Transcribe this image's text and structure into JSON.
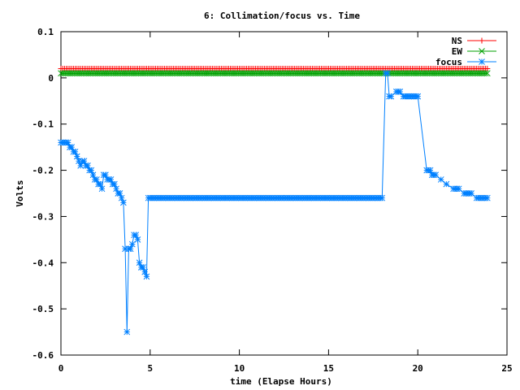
{
  "chart_data": {
    "type": "line",
    "title": "6: Collimation/focus vs. Time",
    "xlabel": "time (Elapse Hours)",
    "ylabel": "Volts",
    "xlim": [
      0,
      25
    ],
    "ylim": [
      -0.6,
      0.1
    ],
    "xticks": [
      0,
      5,
      10,
      15,
      20,
      25
    ],
    "yticks": [
      0.1,
      0,
      -0.1,
      -0.2,
      -0.3,
      -0.4,
      -0.5,
      -0.6
    ],
    "xtick_labels": [
      "0",
      "5",
      "10",
      "15",
      "20",
      "25"
    ],
    "ytick_labels": [
      "0.1",
      "0",
      "-0.1",
      "-0.2",
      "-0.3",
      "-0.4",
      "-0.5",
      "-0.6"
    ],
    "grid": false,
    "legend_position": "top-right",
    "series": [
      {
        "name": "NS",
        "color": "#ff0000",
        "marker": "plus",
        "x": [
          0.0,
          23.9
        ],
        "y": [
          0.02,
          0.02
        ],
        "dense_markers": true
      },
      {
        "name": "EW",
        "color": "#00a000",
        "marker": "cross",
        "x": [
          0.0,
          23.9
        ],
        "y": [
          0.01,
          0.01
        ],
        "dense_markers": true
      },
      {
        "name": "focus",
        "color": "#0080ff",
        "marker": "star",
        "x": [
          0.0,
          0.2,
          0.4,
          0.5,
          0.6,
          0.7,
          0.8,
          0.9,
          1.0,
          1.1,
          1.2,
          1.3,
          1.4,
          1.5,
          1.6,
          1.7,
          1.8,
          1.9,
          2.0,
          2.1,
          2.2,
          2.3,
          2.4,
          2.5,
          2.6,
          2.7,
          2.8,
          2.9,
          3.0,
          3.1,
          3.2,
          3.3,
          3.4,
          3.5,
          3.6,
          3.7,
          3.8,
          3.9,
          4.0,
          4.1,
          4.2,
          4.3,
          4.4,
          4.5,
          4.6,
          4.7,
          4.8,
          4.9,
          5.0,
          5.1,
          5.2,
          5.3,
          5.4,
          5.5,
          5.6,
          5.7,
          5.8,
          5.9,
          6.0,
          6.1,
          6.2,
          6.3,
          6.5,
          17.9,
          18.0,
          18.2,
          18.3,
          18.4,
          18.5,
          18.8,
          19.0,
          19.2,
          19.4,
          19.6,
          19.8,
          20.0,
          20.5,
          20.7,
          20.8,
          21.0,
          21.3,
          21.6,
          22.0,
          22.3,
          22.6,
          23.0,
          23.3,
          23.6,
          23.9
        ],
        "y": [
          -0.14,
          -0.14,
          -0.14,
          -0.15,
          -0.15,
          -0.16,
          -0.16,
          -0.17,
          -0.18,
          -0.19,
          -0.18,
          -0.18,
          -0.19,
          -0.19,
          -0.2,
          -0.2,
          -0.21,
          -0.22,
          -0.22,
          -0.23,
          -0.23,
          -0.24,
          -0.21,
          -0.21,
          -0.22,
          -0.22,
          -0.22,
          -0.23,
          -0.23,
          -0.24,
          -0.25,
          -0.25,
          -0.26,
          -0.27,
          -0.37,
          -0.55,
          -0.37,
          -0.37,
          -0.36,
          -0.34,
          -0.34,
          -0.35,
          -0.4,
          -0.41,
          -0.41,
          -0.42,
          -0.43,
          -0.26,
          -0.26,
          -0.26,
          -0.26,
          -0.26,
          -0.26,
          -0.26,
          -0.26,
          -0.26,
          -0.26,
          -0.26,
          -0.26,
          -0.26,
          -0.26,
          -0.26,
          -0.26,
          -0.26,
          -0.26,
          0.01,
          0.01,
          -0.04,
          -0.04,
          -0.03,
          -0.03,
          -0.04,
          -0.04,
          -0.04,
          -0.04,
          -0.04,
          -0.2,
          -0.2,
          -0.21,
          -0.21,
          -0.22,
          -0.23,
          -0.24,
          -0.24,
          -0.25,
          -0.25,
          -0.26,
          -0.26,
          -0.26
        ],
        "dense_markers_flat": true
      }
    ]
  }
}
